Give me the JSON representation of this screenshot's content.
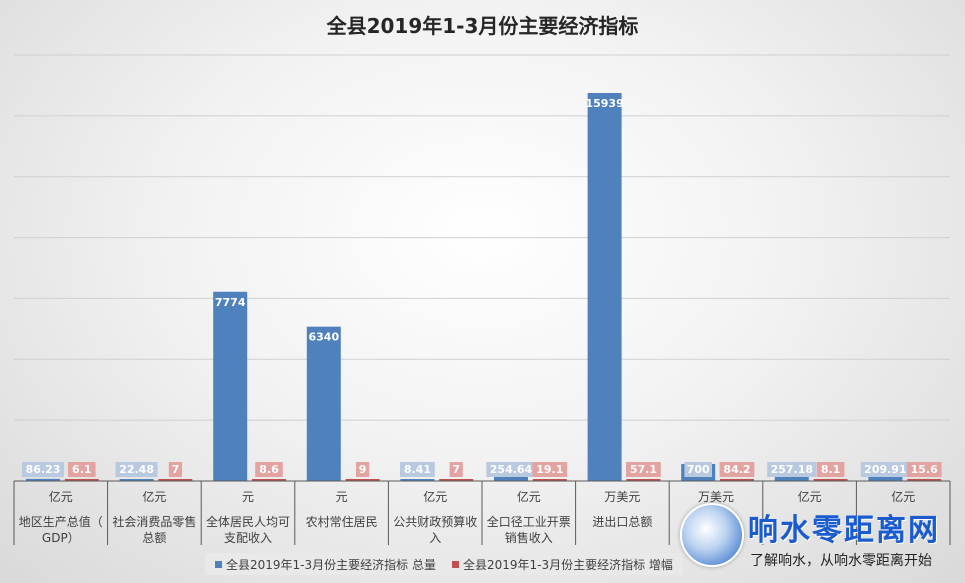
{
  "chart_data": {
    "type": "bar",
    "title": "全县2019年1-3月份主要经济指标",
    "ylim": [
      0,
      17500
    ],
    "grid": true,
    "categories": [
      {
        "unit": "亿元",
        "name": "地区生产总值（GDP）"
      },
      {
        "unit": "亿元",
        "name": "社会消费品零售总额"
      },
      {
        "unit": "元",
        "name": "全体居民人均可支配收入"
      },
      {
        "unit": "元",
        "name": "农村常住居民"
      },
      {
        "unit": "亿元",
        "name": "公共财政预算收入"
      },
      {
        "unit": "亿元",
        "name": "全口径工业开票销售收入"
      },
      {
        "unit": "万美元",
        "name": "进出口总额"
      },
      {
        "unit": "万美元",
        "name": ""
      },
      {
        "unit": "亿元",
        "name": ""
      },
      {
        "unit": "亿元",
        "name": ""
      }
    ],
    "series": [
      {
        "name": "全县2019年1-3月份主要经济指标 总量",
        "color": "#4f81bd",
        "values": [
          86.23,
          22.48,
          7774,
          6340,
          8.41,
          254.64,
          15939,
          700,
          257.18,
          209.91
        ],
        "labels": [
          "86.23",
          "22.48",
          "7774",
          "6340",
          "8.41",
          "254.64",
          "15939",
          "700",
          "257.18",
          "209.91"
        ]
      },
      {
        "name": "全县2019年1-3月份主要经济指标 增幅",
        "color": "#c0504d",
        "values": [
          6.1,
          7,
          8.6,
          9,
          7,
          19.1,
          57.1,
          84.2,
          8.1,
          15.6
        ],
        "labels": [
          "6.1",
          "7",
          "8.6",
          "9",
          "7",
          "19.1",
          "57.1",
          "84.2",
          "8.1",
          "15.6"
        ]
      }
    ],
    "legend": "bottom",
    "legend_labels": [
      "全县2019年1-3月份主要经济指标 总量",
      "全县2019年1-3月份主要经济指标 增幅"
    ]
  },
  "watermark": {
    "title": "响水零距离网",
    "subtitle": "了解响水，从响水零距离开始"
  }
}
